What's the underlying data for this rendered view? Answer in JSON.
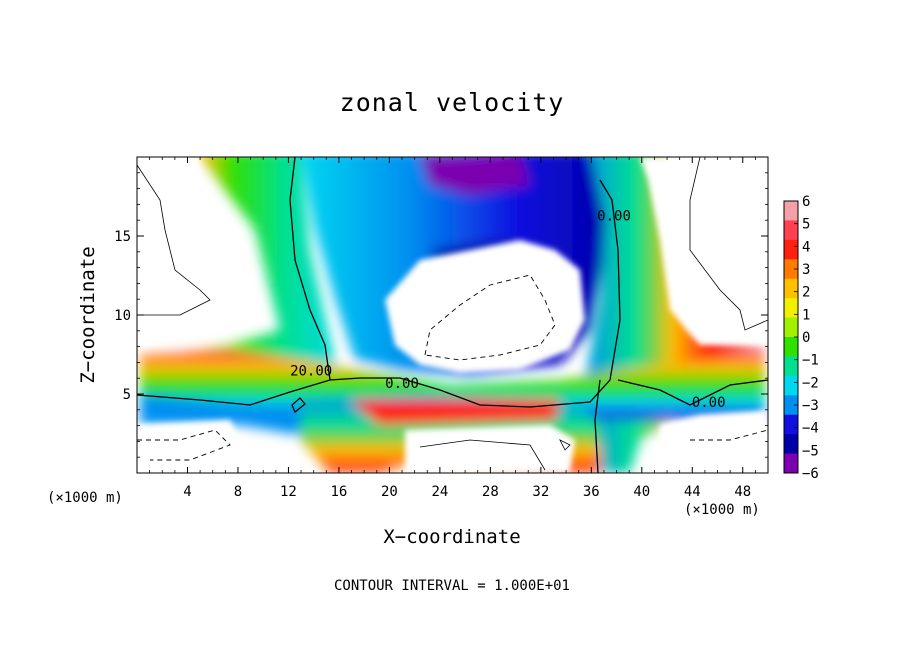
{
  "chart_data": {
    "type": "heatmap",
    "title": "zonal velocity",
    "xlabel": "X−coordinate",
    "ylabel": "Z−coordinate",
    "x_unit": "(×1000 m)",
    "xlim": [
      0,
      50
    ],
    "ylim": [
      0,
      20
    ],
    "x_ticks": [
      "4",
      "8",
      "12",
      "16",
      "20",
      "24",
      "28",
      "32",
      "36",
      "40",
      "44",
      "48"
    ],
    "x_tick_values": [
      4,
      8,
      12,
      16,
      20,
      24,
      28,
      32,
      36,
      40,
      44,
      48
    ],
    "y_ticks": [
      "5",
      "10",
      "15"
    ],
    "y_tick_values": [
      5,
      10,
      15
    ],
    "colorbar": {
      "labels": [
        "6",
        "5",
        "4",
        "3",
        "2",
        "1",
        "0",
        "−1",
        "−2",
        "−3",
        "−4",
        "−5",
        "−6"
      ],
      "values": [
        6,
        5,
        4,
        3,
        2,
        1,
        0,
        -1,
        -2,
        -3,
        -4,
        -5,
        -6
      ],
      "colors": [
        "#f5a0a8",
        "#ff4050",
        "#ff2010",
        "#ff7a00",
        "#ffc000",
        "#f0f000",
        "#a0f000",
        "#30e000",
        "#00e090",
        "#00d8f0",
        "#0090f0",
        "#1010e0",
        "#0000a8",
        "#7a00b0"
      ]
    },
    "contour_labels": [
      {
        "text": "20.00",
        "x": 13.8,
        "y": 6.5
      },
      {
        "text": "0.00",
        "x": 21.0,
        "y": 5.7
      },
      {
        "text": "0.00",
        "x": 37.8,
        "y": 16.3
      },
      {
        "text": "0.00",
        "x": 45.3,
        "y": 4.5
      }
    ],
    "annotation": "CONTOUR INTERVAL = 1.000E+01"
  }
}
